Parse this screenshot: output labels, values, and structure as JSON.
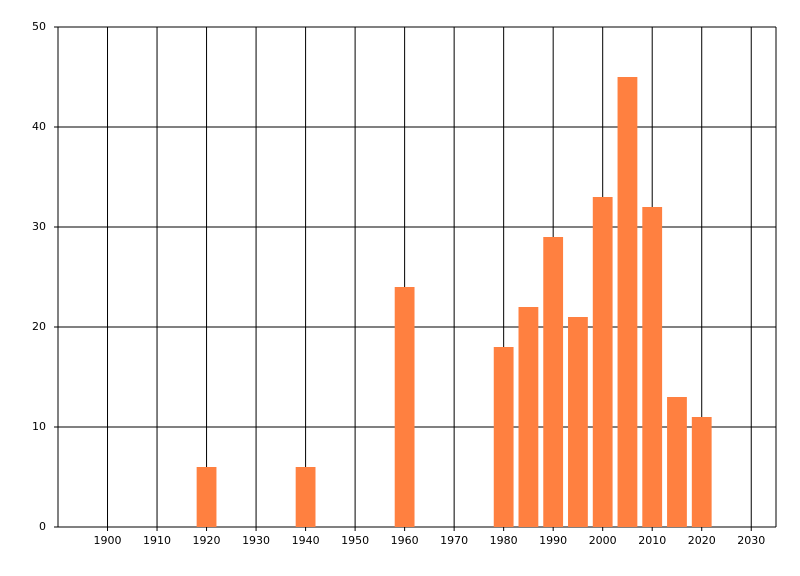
{
  "chart_data": {
    "type": "bar",
    "x": [
      1920,
      1940,
      1960,
      1980,
      1985,
      1990,
      1995,
      2000,
      2005,
      2010,
      2015,
      2020
    ],
    "values": [
      6,
      6,
      24,
      18,
      22,
      29,
      21,
      33,
      45,
      32,
      13,
      11
    ],
    "color": "#ff8040",
    "xlim": [
      1890,
      2035
    ],
    "xticks": [
      1900,
      1910,
      1920,
      1930,
      1940,
      1950,
      1960,
      1970,
      1980,
      1990,
      2000,
      2010,
      2020,
      2030
    ],
    "ylim": [
      0,
      50
    ],
    "yticks": [
      0,
      10,
      20,
      30,
      40,
      50
    ],
    "grid": true
  }
}
